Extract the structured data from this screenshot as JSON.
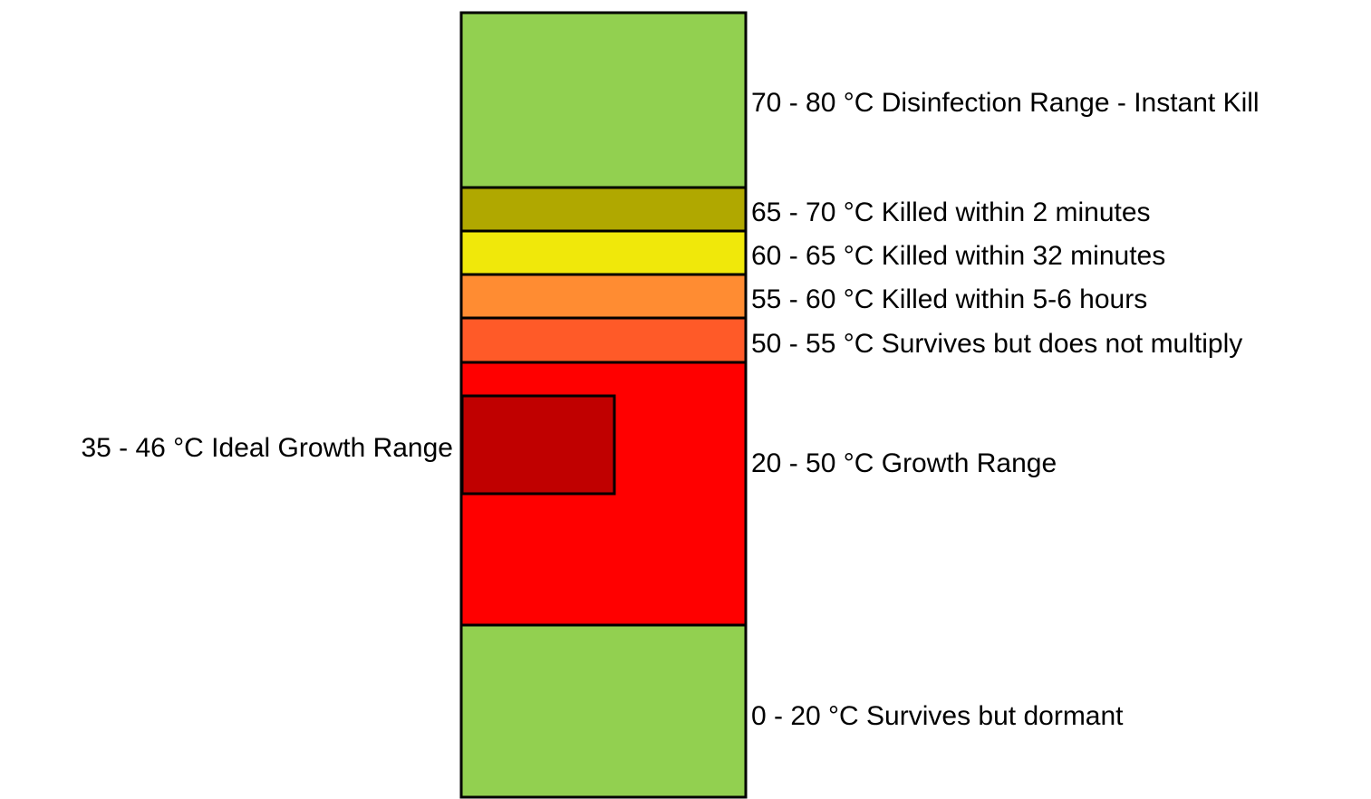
{
  "bands": [
    {
      "label": "70 - 80 °C Disinfection Range - Instant Kill",
      "color": "#92d050"
    },
    {
      "label": "65 - 70 °C Killed within 2 minutes",
      "color": "#b0a800"
    },
    {
      "label": "60 - 65 °C Killed within 32 minutes",
      "color": "#f0e80a"
    },
    {
      "label": "55 - 60 °C Killed within 5-6 hours",
      "color": "#ff8c32"
    },
    {
      "label": "50 - 55 °C Survives but does not multiply",
      "color": "#ff5a28"
    },
    {
      "label": "20 - 50 °C Growth Range",
      "color": "#ff0000"
    },
    {
      "label": "0 - 20 °C Survives but dormant",
      "color": "#92d050"
    }
  ],
  "ideal": {
    "label": "35 - 46 °C Ideal Growth Range",
    "color": "#c00000"
  }
}
